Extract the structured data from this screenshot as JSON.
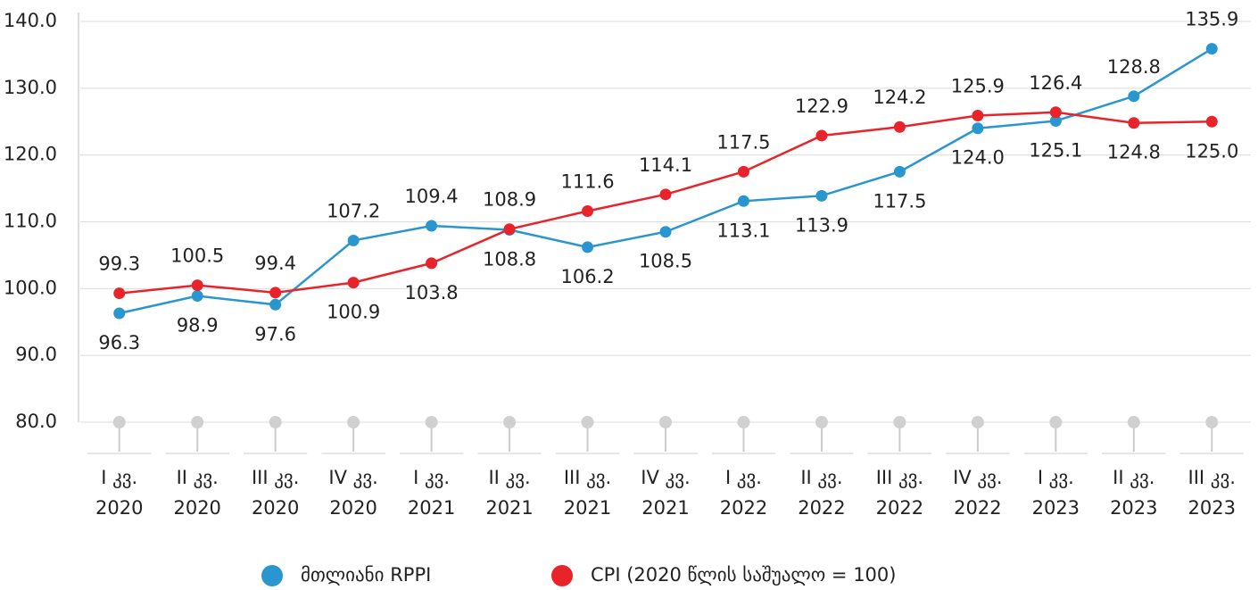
{
  "chart_data": {
    "type": "line",
    "categories": [
      [
        "I კვ.",
        "2020"
      ],
      [
        "II კვ.",
        "2020"
      ],
      [
        "III კვ.",
        "2020"
      ],
      [
        "IV კვ.",
        "2020"
      ],
      [
        "I კვ.",
        "2021"
      ],
      [
        "II კვ.",
        "2021"
      ],
      [
        "III კვ.",
        "2021"
      ],
      [
        "IV კვ.",
        "2021"
      ],
      [
        "I კვ.",
        "2022"
      ],
      [
        "II კვ.",
        "2022"
      ],
      [
        "III კვ.",
        "2022"
      ],
      [
        "IV კვ.",
        "2022"
      ],
      [
        "I კვ.",
        "2023"
      ],
      [
        "II კვ.",
        "2023"
      ],
      [
        "III კვ.",
        "2023"
      ]
    ],
    "series": [
      {
        "name": "მთლიანი RPPI",
        "color": "#2a96d0",
        "values": [
          96.3,
          98.9,
          97.6,
          107.2,
          109.4,
          108.8,
          106.2,
          108.5,
          113.1,
          113.9,
          117.5,
          124.0,
          125.1,
          128.8,
          135.9
        ],
        "value_labels": [
          "96.3",
          "98.9",
          "97.6",
          "107.2",
          "109.4",
          "108.8",
          "106.2",
          "108.5",
          "113.1",
          "113.9",
          "117.5",
          "124.0",
          "125.1",
          "128.8",
          "135.9"
        ]
      },
      {
        "name": "CPI (2020 წლის საშუალო = 100)",
        "color": "#e8242a",
        "values": [
          99.3,
          100.5,
          99.4,
          100.9,
          103.8,
          108.9,
          111.6,
          114.1,
          117.5,
          122.9,
          124.2,
          125.9,
          126.4,
          124.8,
          125.0
        ],
        "value_labels": [
          "99.3",
          "100.5",
          "99.4",
          "100.9",
          "103.8",
          "108.9",
          "111.6",
          "114.1",
          "117.5",
          "122.9",
          "124.2",
          "125.9",
          "126.4",
          "124.8",
          "125.0"
        ]
      }
    ],
    "ylim": [
      80,
      140
    ],
    "yticks": [
      {
        "value": 80,
        "label": "80.0"
      },
      {
        "value": 90,
        "label": "90.0"
      },
      {
        "value": 100,
        "label": "100.0"
      },
      {
        "value": 110,
        "label": "110.0"
      },
      {
        "value": 120,
        "label": "120.0"
      },
      {
        "value": 130,
        "label": "130.0"
      },
      {
        "value": 140,
        "label": "140.0"
      }
    ],
    "grid": true,
    "legend": "bottom"
  }
}
